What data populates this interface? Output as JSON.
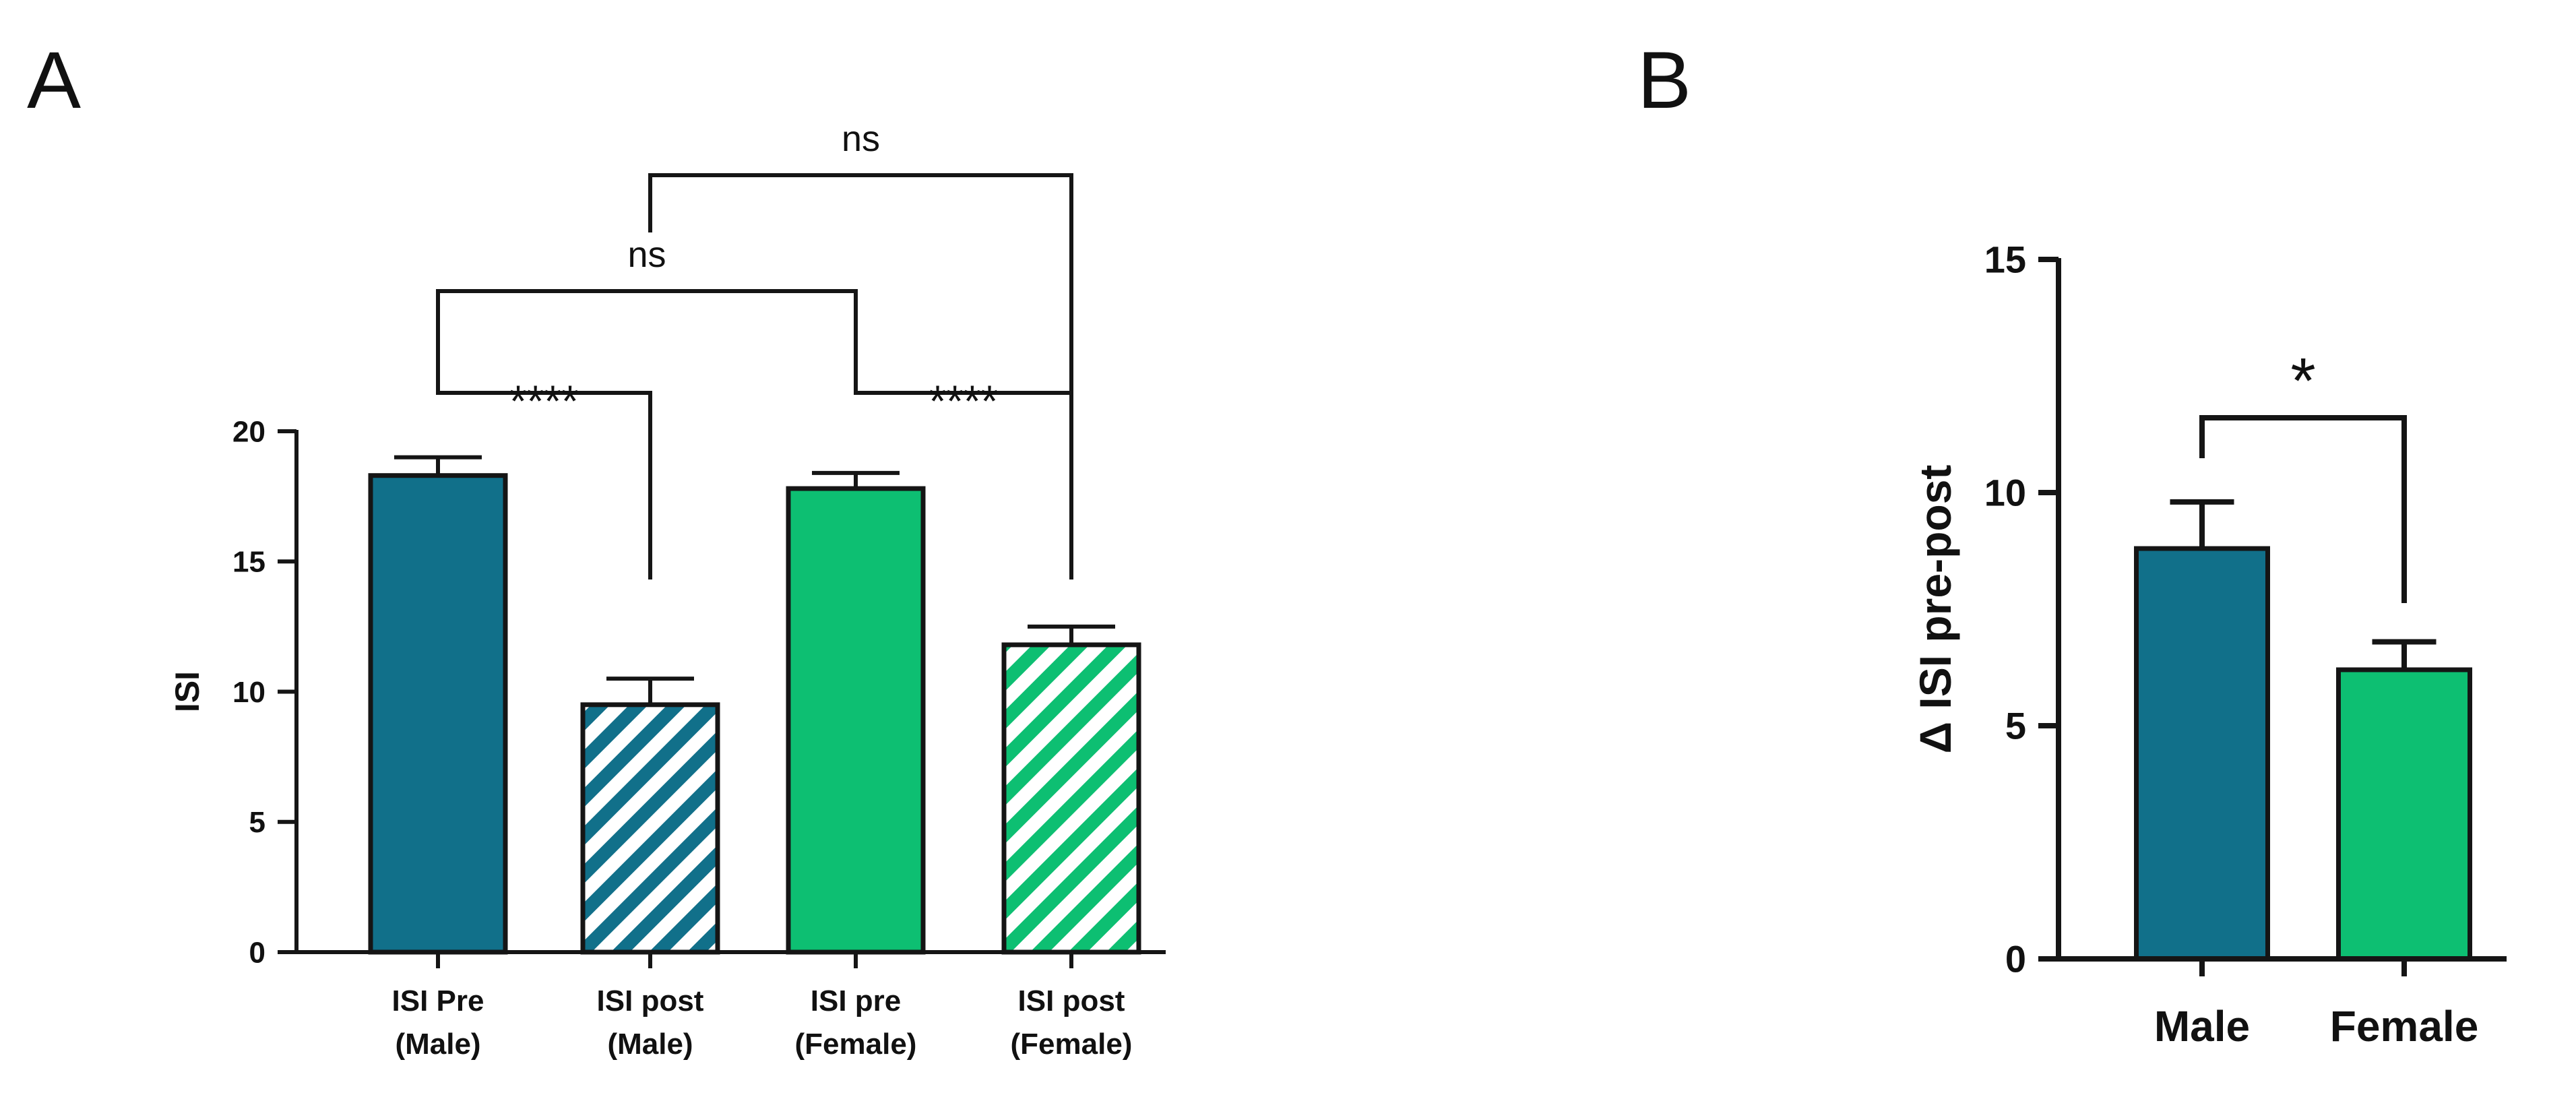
{
  "panel_labels": [
    "A",
    "B"
  ],
  "colors": {
    "male": "#11708a",
    "female": "#0dbf72",
    "stroke": "#151515"
  },
  "chart_data": [
    {
      "type": "bar",
      "panel": "A",
      "categories": [
        [
          "ISI Pre",
          "(Male)"
        ],
        [
          "ISI post",
          "(Male)"
        ],
        [
          "ISI pre",
          "(Female)"
        ],
        [
          "ISI post",
          "(Female)"
        ]
      ],
      "values": [
        18.3,
        9.5,
        17.8,
        11.8
      ],
      "errors": [
        0.7,
        1.0,
        0.6,
        0.7
      ],
      "fills": [
        "solid",
        "hatched",
        "solid",
        "hatched"
      ],
      "bar_colors": [
        "male",
        "male",
        "female",
        "female"
      ],
      "ylabel": "ISI",
      "ylim": [
        0,
        20
      ],
      "yticks": [
        0,
        5,
        10,
        15,
        20
      ],
      "comparisons": [
        {
          "from": 0,
          "to": 1,
          "label": "****"
        },
        {
          "from": 2,
          "to": 3,
          "label": "****"
        },
        {
          "from": 0,
          "to": 2,
          "label": "ns"
        },
        {
          "from": 1,
          "to": 3,
          "label": "ns"
        }
      ]
    },
    {
      "type": "bar",
      "panel": "B",
      "categories": [
        [
          "Male"
        ],
        [
          "Female"
        ]
      ],
      "values": [
        8.8,
        6.2
      ],
      "errors": [
        1.0,
        0.6
      ],
      "fills": [
        "solid",
        "solid"
      ],
      "bar_colors": [
        "male",
        "female"
      ],
      "ylabel": "Δ ISI pre-post",
      "ylim": [
        0,
        15
      ],
      "yticks": [
        0,
        5,
        10,
        15
      ],
      "comparisons": [
        {
          "from": 0,
          "to": 1,
          "label": "*"
        }
      ]
    }
  ]
}
